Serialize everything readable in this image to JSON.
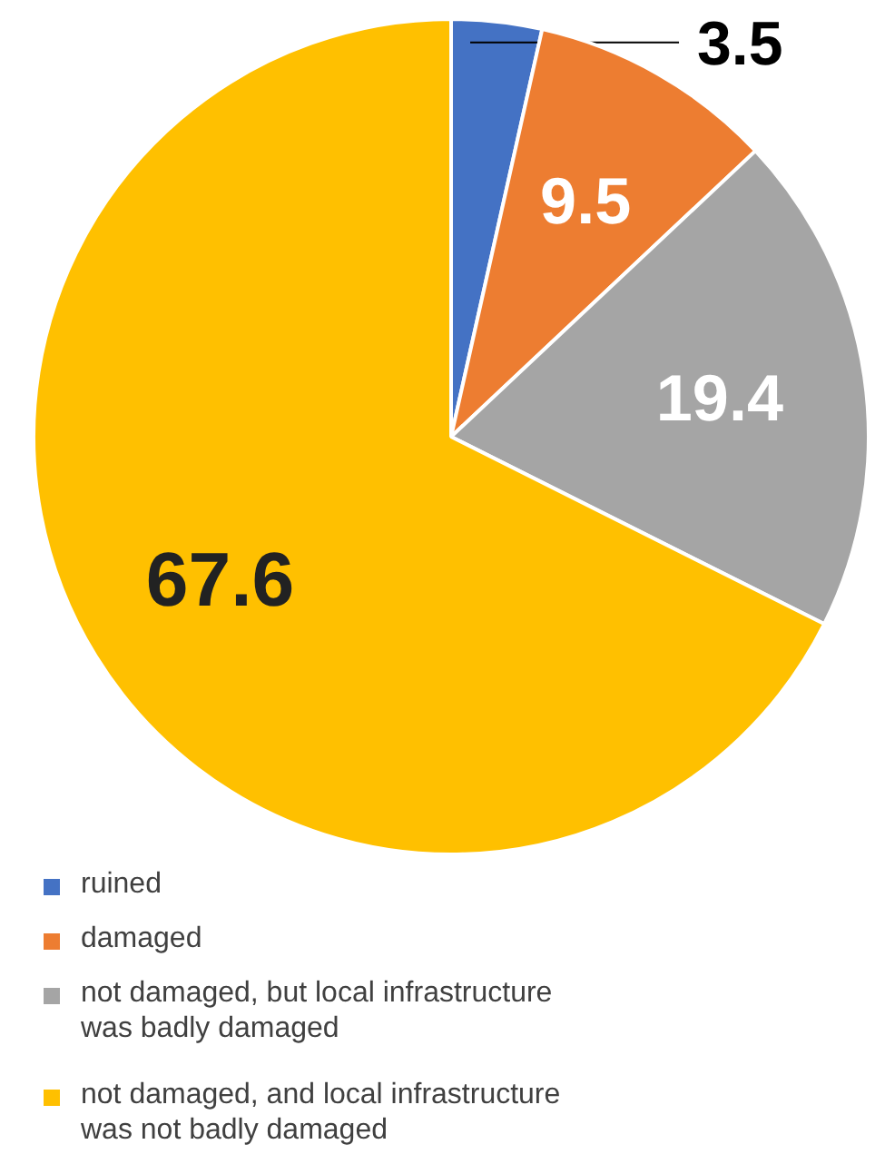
{
  "chart_data": {
    "type": "pie",
    "categories": [
      "ruined",
      "damaged",
      "not damaged, but local infrastructure was badly damaged",
      "not damaged, and local infrastructure was not badly damaged"
    ],
    "values": [
      3.5,
      9.5,
      19.4,
      67.6
    ],
    "colors": [
      "#4472c4",
      "#ed7d31",
      "#a5a5a5",
      "#ffc000"
    ],
    "data_labels": true,
    "legend": "bottom left"
  }
}
